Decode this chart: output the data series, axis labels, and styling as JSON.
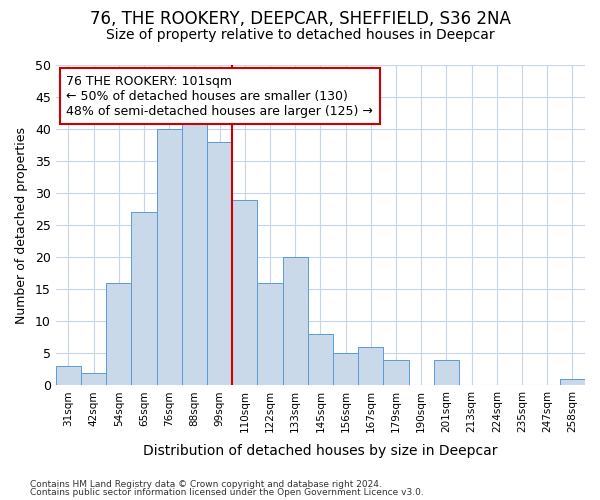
{
  "title": "76, THE ROOKERY, DEEPCAR, SHEFFIELD, S36 2NA",
  "subtitle": "Size of property relative to detached houses in Deepcar",
  "xlabel": "Distribution of detached houses by size in Deepcar",
  "ylabel": "Number of detached properties",
  "bar_labels": [
    "31sqm",
    "42sqm",
    "54sqm",
    "65sqm",
    "76sqm",
    "88sqm",
    "99sqm",
    "110sqm",
    "122sqm",
    "133sqm",
    "145sqm",
    "156sqm",
    "167sqm",
    "179sqm",
    "190sqm",
    "201sqm",
    "213sqm",
    "224sqm",
    "235sqm",
    "247sqm",
    "258sqm"
  ],
  "bar_values": [
    3,
    2,
    16,
    27,
    40,
    41,
    38,
    29,
    16,
    20,
    8,
    5,
    6,
    4,
    0,
    4,
    0,
    0,
    0,
    0,
    1
  ],
  "bar_color": "#c9d9ea",
  "bar_edgecolor": "#5b9bd5",
  "vline_color": "#cc0000",
  "annotation_title": "76 THE ROOKERY: 101sqm",
  "annotation_line1": "← 50% of detached houses are smaller (130)",
  "annotation_line2": "48% of semi-detached houses are larger (125) →",
  "annotation_box_edgecolor": "#cc0000",
  "ylim": [
    0,
    50
  ],
  "yticks": [
    0,
    5,
    10,
    15,
    20,
    25,
    30,
    35,
    40,
    45,
    50
  ],
  "footer1": "Contains HM Land Registry data © Crown copyright and database right 2024.",
  "footer2": "Contains public sector information licensed under the Open Government Licence v3.0.",
  "bg_color": "#ffffff",
  "plot_bg_color": "#ffffff",
  "grid_color": "#c8d4e8",
  "title_fontsize": 12,
  "subtitle_fontsize": 10,
  "xlabel_fontsize": 10,
  "ylabel_fontsize": 9
}
